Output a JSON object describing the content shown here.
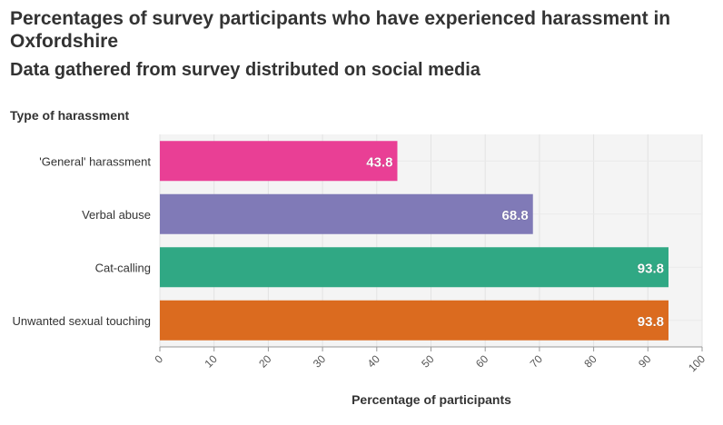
{
  "header": {
    "title": "Percentages of survey participants who have experienced harassment in Oxfordshire",
    "subtitle": "Data gathered from survey distributed on social media"
  },
  "chart_data": {
    "type": "bar",
    "orientation": "horizontal",
    "categories": [
      "'General' harassment",
      "Verbal abuse",
      "Cat-calling",
      "Unwanted sexual touching"
    ],
    "values": [
      43.8,
      68.8,
      93.8,
      93.8
    ],
    "colors": [
      "#e93f95",
      "#807ab7",
      "#30a884",
      "#db6b1f"
    ],
    "category_axis_title": "Type of harassment",
    "xlabel": "Percentage of participants",
    "xlim": [
      0,
      100
    ],
    "xticks": [
      "0",
      "10",
      "20",
      "30",
      "40",
      "50",
      "60",
      "70",
      "80",
      "90",
      "100"
    ],
    "data_labels": [
      "43.8",
      "68.8",
      "93.8",
      "93.8"
    ],
    "grid": true,
    "legend": "none"
  }
}
